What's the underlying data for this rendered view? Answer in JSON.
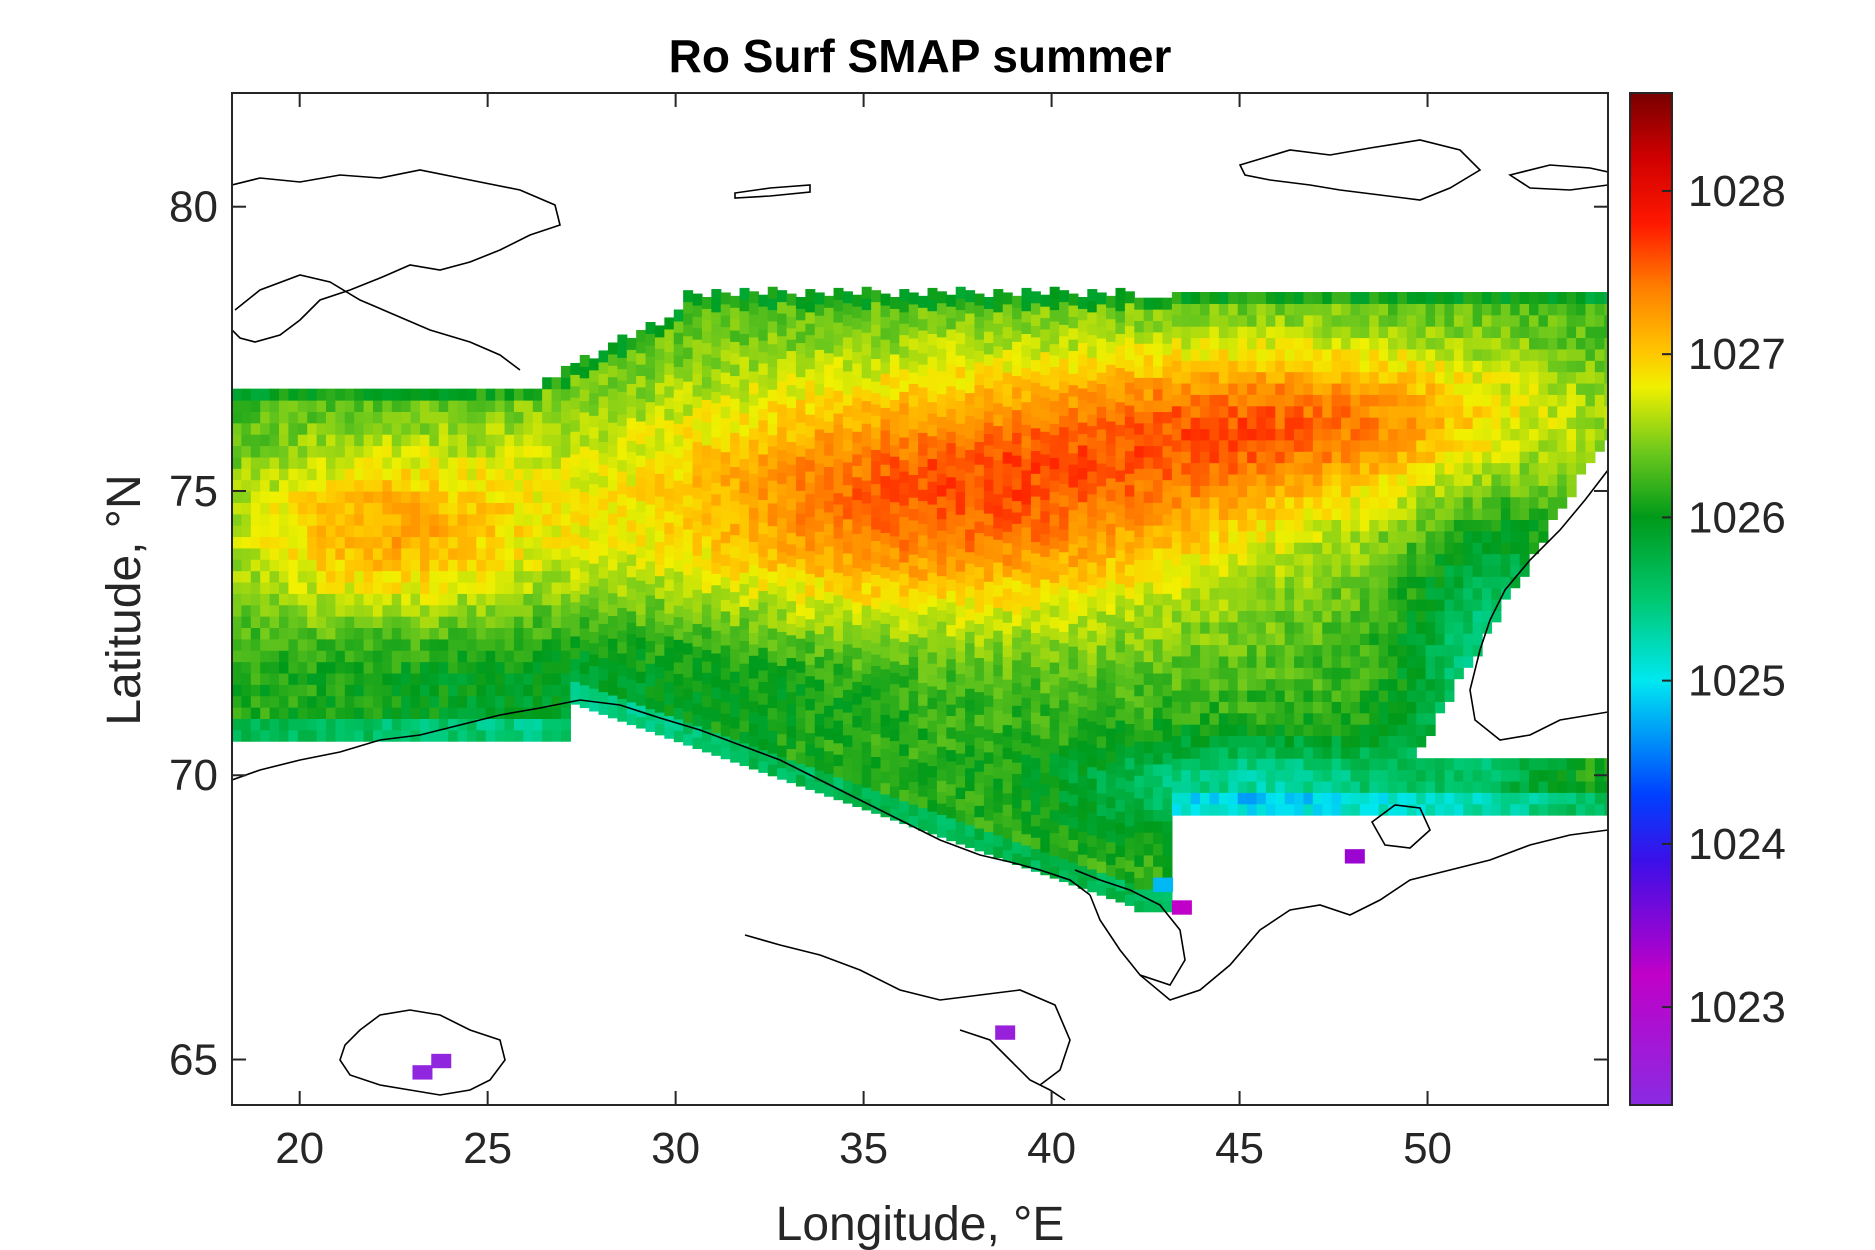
{
  "chart_data": {
    "type": "heatmap",
    "title": "Ro Surf SMAP summer",
    "xlabel": "Longitude, °E",
    "ylabel": "Latitude, °N",
    "xlim": [
      18.2,
      54.8
    ],
    "ylim": [
      64.2,
      82.0
    ],
    "xticks": [
      20,
      25,
      30,
      35,
      40,
      45,
      50
    ],
    "xtick_labels": [
      "20",
      "25",
      "30",
      "35",
      "40",
      "45",
      "50"
    ],
    "yticks": [
      65,
      70,
      75,
      80
    ],
    "ytick_labels": [
      "65",
      "70",
      "75",
      "80"
    ],
    "colorbar": {
      "colormap": "jet-like (purple-blue-cyan-green-yellow-orange-red-darkred)",
      "range": [
        1022.4,
        1028.6
      ],
      "ticks": [
        1023,
        1024,
        1025,
        1026,
        1027,
        1028
      ],
      "tick_labels": [
        "1023",
        "1024",
        "1025",
        "1026",
        "1027",
        "1028"
      ],
      "stops": [
        {
          "value": 1022.4,
          "color": "#8a2be2"
        },
        {
          "value": 1023.2,
          "color": "#c000c8"
        },
        {
          "value": 1023.9,
          "color": "#3b10e8"
        },
        {
          "value": 1024.3,
          "color": "#0040ff"
        },
        {
          "value": 1025.0,
          "color": "#00e8f0"
        },
        {
          "value": 1025.5,
          "color": "#00c870"
        },
        {
          "value": 1026.0,
          "color": "#009a1a"
        },
        {
          "value": 1026.4,
          "color": "#6cc81c"
        },
        {
          "value": 1026.8,
          "color": "#f0f000"
        },
        {
          "value": 1027.0,
          "color": "#ffc800"
        },
        {
          "value": 1027.4,
          "color": "#ff8000"
        },
        {
          "value": 1027.8,
          "color": "#ff1800"
        },
        {
          "value": 1028.2,
          "color": "#d00000"
        },
        {
          "value": 1028.6,
          "color": "#780000"
        }
      ]
    },
    "field_model": {
      "description": "Approximate surface potential density field over the Barents Sea (values in kg/m^3 read from colorbar)",
      "base": 1026.2,
      "features": [
        {
          "lon": 37.0,
          "lat": 74.8,
          "sigma_lon": 6.5,
          "sigma_lat": 1.6,
          "amp": 1.35
        },
        {
          "lon": 47.0,
          "lat": 76.2,
          "sigma_lon": 5.0,
          "sigma_lat": 1.0,
          "amp": 1.0
        },
        {
          "lon": 22.0,
          "lat": 74.2,
          "sigma_lon": 3.0,
          "sigma_lat": 1.1,
          "amp": 0.9
        },
        {
          "lon": 28.0,
          "lat": 71.5,
          "sigma_lon": 6.0,
          "sigma_lat": 0.9,
          "amp": -0.35
        },
        {
          "lon": 45.5,
          "lat": 69.7,
          "sigma_lon": 3.5,
          "sigma_lat": 0.6,
          "amp": -0.9
        },
        {
          "lon": 51.5,
          "lat": 72.0,
          "sigma_lon": 1.5,
          "sigma_lat": 1.8,
          "amp": -0.8
        }
      ],
      "grid_step_lon": 0.25,
      "grid_step_lat": 0.2,
      "domain": {
        "lon_min": 18.2,
        "lon_max": 54.8,
        "lat_north_edge": 78.4,
        "lat_south_edge": 69.3
      }
    },
    "isolated_cells": [
      {
        "lon": 23.0,
        "lat": 64.7,
        "value": 1022.5
      },
      {
        "lon": 23.5,
        "lat": 64.9,
        "value": 1022.5
      },
      {
        "lon": 38.5,
        "lat": 65.4,
        "value": 1022.6
      },
      {
        "lon": 42.7,
        "lat": 68.0,
        "value": 1024.8
      },
      {
        "lon": 43.2,
        "lat": 67.6,
        "value": 1023.2
      },
      {
        "lon": 47.8,
        "lat": 68.5,
        "value": 1023.4
      }
    ]
  }
}
